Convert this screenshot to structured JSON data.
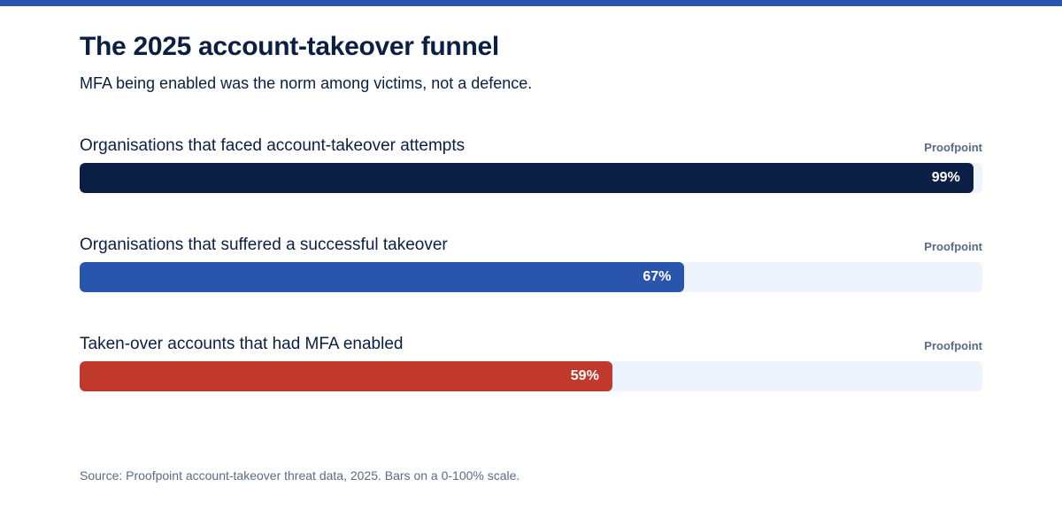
{
  "title": "The 2025 account-takeover funnel",
  "subtitle": "MFA being enabled was the norm among victims, not a defence.",
  "footnote": "Source: Proofpoint account-takeover threat data, 2025. Bars on a 0-100% scale.",
  "colors": {
    "accent_bar": "#2a55ad",
    "track": "#eef4fd"
  },
  "chart_data": {
    "type": "bar",
    "orientation": "horizontal",
    "title": "The 2025 account-takeover funnel",
    "subtitle": "MFA being enabled was the norm among victims, not a defence.",
    "xlim": [
      0,
      100
    ],
    "unit": "%",
    "grid": false,
    "categories": [
      "Organisations that faced account-takeover attempts",
      "Organisations that suffered a successful takeover",
      "Taken-over accounts that had MFA enabled"
    ],
    "values": [
      99,
      67,
      59
    ],
    "labels": [
      "99%",
      "67%",
      "59%"
    ],
    "sources": [
      "Proofpoint",
      "Proofpoint",
      "Proofpoint"
    ],
    "colors": [
      "#0b1f44",
      "#2a55ad",
      "#c0392b"
    ]
  }
}
